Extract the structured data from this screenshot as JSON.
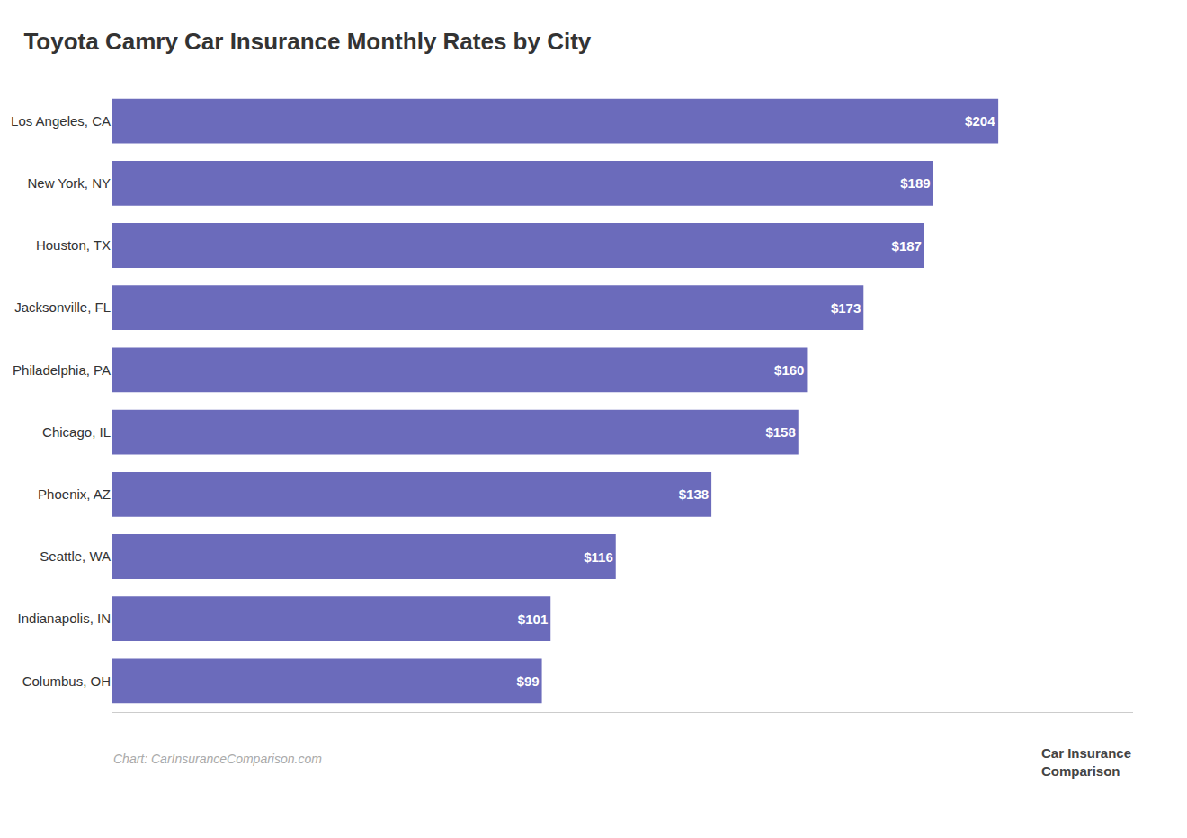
{
  "chart_data": {
    "type": "bar",
    "orientation": "horizontal",
    "title": "Toyota Camry Car Insurance Monthly Rates by City",
    "categories": [
      "Los Angeles, CA",
      "New York, NY",
      "Houston, TX",
      "Jacksonville, FL",
      "Philadelphia, PA",
      "Chicago, IL",
      "Phoenix, AZ",
      "Seattle, WA",
      "Indianapolis, IN",
      "Columbus, OH"
    ],
    "values": [
      204,
      189,
      187,
      173,
      160,
      158,
      138,
      116,
      101,
      99
    ],
    "value_labels": [
      "$204",
      "$189",
      "$187",
      "$173",
      "$160",
      "$158",
      "$138",
      "$116",
      "$101",
      "$99"
    ],
    "data_labels": true,
    "color": "#6b6bbb",
    "xlim": [
      0,
      235
    ],
    "tick_labels": "y",
    "grid": false,
    "annotations": [
      "Chart: CarInsuranceComparison.com",
      "Car Insurance\nComparison"
    ]
  }
}
